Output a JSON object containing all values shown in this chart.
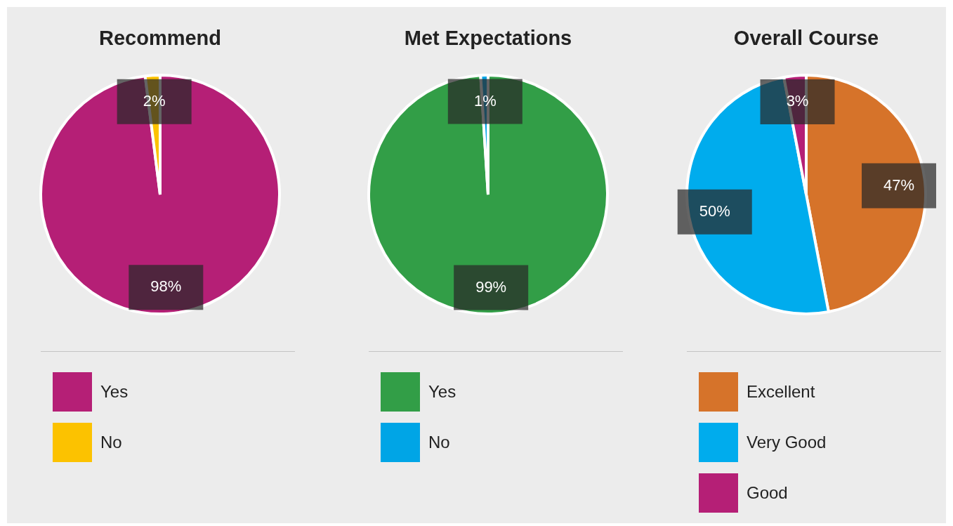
{
  "chart_data": [
    {
      "type": "pie",
      "title": "Recommend",
      "categories": [
        "Yes",
        "No"
      ],
      "values": [
        98,
        2
      ],
      "colors": [
        "#b51f76",
        "#fcc200"
      ],
      "value_labels": [
        "98%",
        "2%"
      ],
      "legend": "bottom"
    },
    {
      "type": "pie",
      "title": "Met Expectations",
      "categories": [
        "Yes",
        "No"
      ],
      "values": [
        99,
        1
      ],
      "colors": [
        "#329e47",
        "#00a5e6"
      ],
      "value_labels": [
        "99%",
        "1%"
      ],
      "legend": "bottom"
    },
    {
      "type": "pie",
      "title": "Overall Course",
      "categories": [
        "Excellent",
        "Very Good",
        "Good"
      ],
      "values": [
        47,
        50,
        3
      ],
      "colors": [
        "#d6732a",
        "#00aced",
        "#b51f76"
      ],
      "value_labels": [
        "47%",
        "50%",
        "3%"
      ],
      "legend": "bottom"
    }
  ]
}
